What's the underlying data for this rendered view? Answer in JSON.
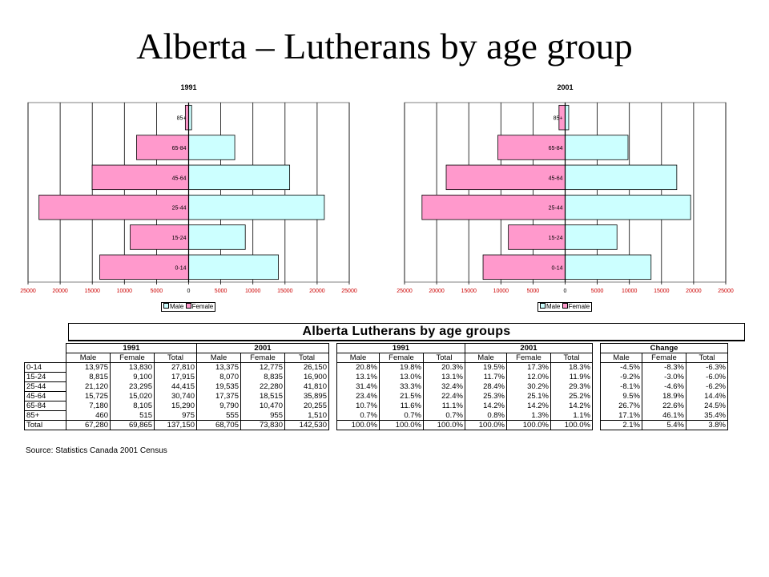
{
  "title": "Alberta – Lutherans by age group",
  "chart_data": [
    {
      "type": "bar",
      "orientation": "horizontal-population-pyramid",
      "title": "1991",
      "categories": [
        "85+",
        "65-84",
        "45-64",
        "25-44",
        "15-24",
        "0-14"
      ],
      "series": [
        {
          "name": "Male",
          "values": [
            460,
            7180,
            15725,
            21120,
            8815,
            13975
          ],
          "color": "#ccffff",
          "side": "right"
        },
        {
          "name": "Female",
          "values": [
            515,
            8105,
            15020,
            23295,
            9100,
            13830
          ],
          "color": "#ff99cc",
          "side": "left"
        }
      ],
      "xticks": [
        "25000",
        "20000",
        "15000",
        "10000",
        "5000",
        "0",
        "5000",
        "10000",
        "15000",
        "20000",
        "25000"
      ],
      "xlim": [
        -25000,
        25000
      ],
      "grid": true,
      "legend_position": "bottom"
    },
    {
      "type": "bar",
      "orientation": "horizontal-population-pyramid",
      "title": "2001",
      "categories": [
        "85+",
        "65-84",
        "45-64",
        "25-44",
        "15-24",
        "0-14"
      ],
      "series": [
        {
          "name": "Male",
          "values": [
            555,
            9790,
            17375,
            19535,
            8070,
            13375
          ],
          "color": "#ccffff",
          "side": "right"
        },
        {
          "name": "Female",
          "values": [
            955,
            10470,
            18515,
            22280,
            8835,
            12775
          ],
          "color": "#ff99cc",
          "side": "left"
        }
      ],
      "xticks": [
        "25000",
        "20000",
        "15000",
        "10000",
        "5000",
        "0",
        "5000",
        "10000",
        "15000",
        "20000",
        "25000"
      ],
      "xlim": [
        -25000,
        25000
      ],
      "grid": true,
      "legend_position": "bottom"
    },
    {
      "type": "table",
      "title": "Alberta Lutherans by age groups",
      "group_headers": [
        "1991",
        "2001",
        "1991",
        "2001",
        "Change"
      ],
      "col_headers": [
        "Male",
        "Female",
        "Total"
      ],
      "rows": [
        {
          "label": "0-14",
          "cells": [
            "13,975",
            "13,830",
            "27,810",
            "13,375",
            "12,775",
            "26,150",
            "20.8%",
            "19.8%",
            "20.3%",
            "19.5%",
            "17.3%",
            "18.3%",
            "-4.5%",
            "-8.3%",
            "-6.3%"
          ]
        },
        {
          "label": "15-24",
          "cells": [
            "8,815",
            "9,100",
            "17,915",
            "8,070",
            "8,835",
            "16,900",
            "13.1%",
            "13.0%",
            "13.1%",
            "11.7%",
            "12.0%",
            "11.9%",
            "-9.2%",
            "-3.0%",
            "-6.0%"
          ]
        },
        {
          "label": "25-44",
          "cells": [
            "21,120",
            "23,295",
            "44,415",
            "19,535",
            "22,280",
            "41,810",
            "31.4%",
            "33.3%",
            "32.4%",
            "28.4%",
            "30.2%",
            "29.3%",
            "-8.1%",
            "-4.6%",
            "-6.2%"
          ]
        },
        {
          "label": "45-64",
          "cells": [
            "15,725",
            "15,020",
            "30,740",
            "17,375",
            "18,515",
            "35,895",
            "23.4%",
            "21.5%",
            "22.4%",
            "25.3%",
            "25.1%",
            "25.2%",
            "9.5%",
            "18.9%",
            "14.4%"
          ]
        },
        {
          "label": "65-84",
          "cells": [
            "7,180",
            "8,105",
            "15,290",
            "9,790",
            "10,470",
            "20,255",
            "10.7%",
            "11.6%",
            "11.1%",
            "14.2%",
            "14.2%",
            "14.2%",
            "26.7%",
            "22.6%",
            "24.5%"
          ]
        },
        {
          "label": "85+",
          "cells": [
            "460",
            "515",
            "975",
            "555",
            "955",
            "1,510",
            "0.7%",
            "0.7%",
            "0.7%",
            "0.8%",
            "1.3%",
            "1.1%",
            "17.1%",
            "46.1%",
            "35.4%"
          ]
        },
        {
          "label": "Total",
          "cells": [
            "67,280",
            "69,865",
            "137,150",
            "68,705",
            "73,830",
            "142,530",
            "100.0%",
            "100.0%",
            "100.0%",
            "100.0%",
            "100.0%",
            "100.0%",
            "2.1%",
            "5.4%",
            "3.8%"
          ]
        }
      ]
    }
  ],
  "legend": {
    "male": "Male",
    "female": "Female"
  },
  "source": "Source: Statistics Canada 2001 Census"
}
